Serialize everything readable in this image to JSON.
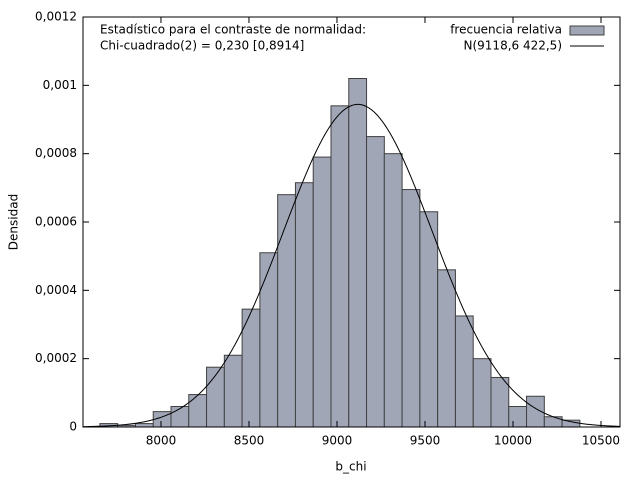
{
  "chart_data": {
    "type": "histogram",
    "annotation": [
      "Estadístico para el contraste de normalidad:",
      "Chi-cuadrado(2) = 0,230 [0,8914]"
    ],
    "xlabel": "b_chi",
    "ylabel": "Densidad",
    "bins": [
      7653,
      7754,
      7855,
      7956,
      8057,
      8158,
      8259,
      8360,
      8461,
      8562,
      8663,
      8764,
      8865,
      8966,
      9067,
      9168,
      9269,
      9370,
      9471,
      9572,
      9673,
      9774,
      9875,
      9976,
      10077,
      10178,
      10279,
      10380
    ],
    "series": [
      {
        "name": "frecuencia relativa",
        "color": "#a0a6b6",
        "values": [
          1e-05,
          5e-06,
          1e-05,
          4.5e-05,
          6e-05,
          9.5e-05,
          0.000175,
          0.00021,
          0.000345,
          0.00051,
          0.00068,
          0.000715,
          0.00079,
          0.00094,
          0.00102,
          0.00085,
          0.0008,
          0.000695,
          0.00063,
          0.00046,
          0.000325,
          0.0002,
          0.000145,
          6e-05,
          9e-05,
          3e-05,
          2e-05
        ]
      }
    ],
    "curve": {
      "name": "N(9118,6 422,5)",
      "mean": 9118.6,
      "sd": 422.5,
      "color": "#000000"
    },
    "xlim": [
      7557,
      10608
    ],
    "ylim": [
      0,
      0.0012
    ],
    "xticks": [
      8000,
      8500,
      9000,
      9500,
      10000,
      10500
    ],
    "yticks": [
      0,
      {
        "value": 0.0002,
        "label": "0,0002"
      },
      {
        "value": 0.0004,
        "label": "0,0004"
      },
      {
        "value": 0.0006,
        "label": "0,0006"
      },
      {
        "value": 0.0008,
        "label": "0,0008"
      },
      {
        "value": 0.001,
        "label": "0,001"
      },
      {
        "value": 0.0012,
        "label": "0,0012"
      }
    ],
    "legend": "upper right"
  }
}
